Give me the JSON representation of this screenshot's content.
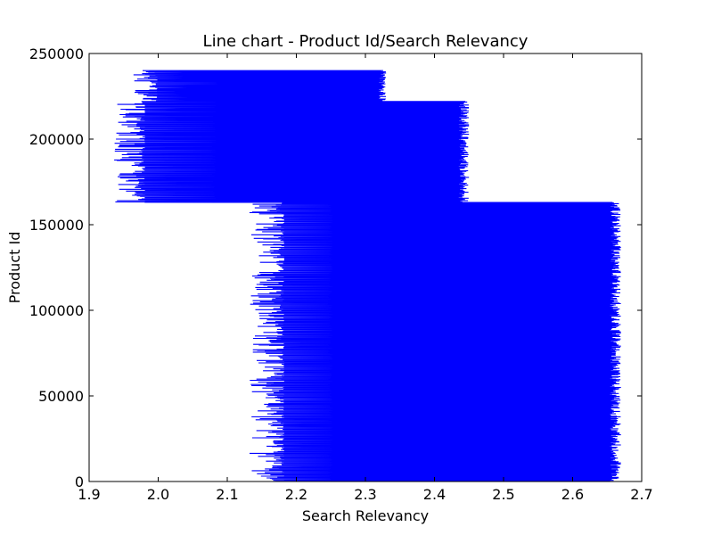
{
  "colors": {
    "series": "#0000ff",
    "axes": "#000000",
    "background": "#ffffff"
  },
  "chart_data": {
    "type": "line",
    "title": "Line chart - Product Id/Search Relevancy",
    "xlabel": "Search Relevancy",
    "ylabel": "Product Id",
    "xlim": [
      1.9,
      2.7
    ],
    "ylim": [
      0,
      250000
    ],
    "xticks": [
      "1.9",
      "2.0",
      "2.1",
      "2.2",
      "2.3",
      "2.4",
      "2.5",
      "2.6",
      "2.7"
    ],
    "yticks": [
      "0",
      "50000",
      "100000",
      "150000",
      "200000",
      "250000"
    ],
    "grid": false,
    "series": [
      {
        "color": "#0000ff",
        "segments": [
          {
            "y_range": [
              0,
              163000
            ],
            "x_range": [
              2.14,
              2.67
            ]
          },
          {
            "y_range": [
              163000,
              222000
            ],
            "x_range": [
              1.94,
              2.45
            ]
          },
          {
            "y_range": [
              222000,
              240000
            ],
            "x_range": [
              1.97,
              2.33
            ]
          }
        ]
      }
    ]
  }
}
